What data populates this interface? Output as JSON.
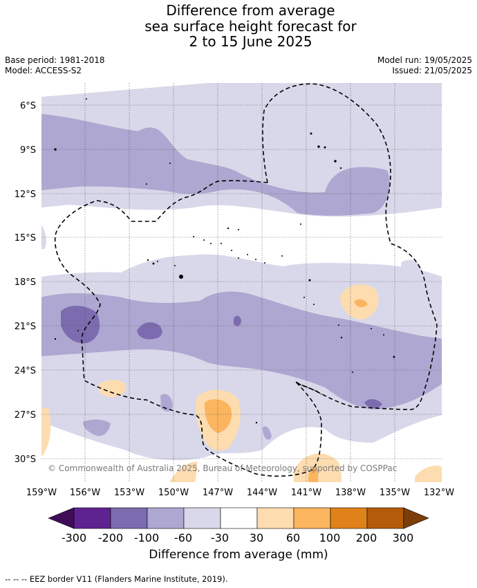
{
  "title": {
    "line1": "Difference from average",
    "line2": "sea surface height forecast for",
    "line3": "2 to 15 June 2025"
  },
  "meta": {
    "base_period": "Base period: 1981-2018",
    "model": "Model: ACCESS-S2",
    "model_run": "Model run: 19/05/2025",
    "issued": "Issued: 21/05/2025"
  },
  "map": {
    "lon_ticks": [
      "159°W",
      "156°W",
      "153°W",
      "150°W",
      "147°W",
      "144°W",
      "141°W",
      "138°W",
      "135°W",
      "132°W"
    ],
    "lat_ticks": [
      "6°S",
      "9°S",
      "12°S",
      "15°S",
      "18°S",
      "21°S",
      "24°S",
      "27°S",
      "30°S"
    ],
    "copyright": "© Commonwealth of Australia 2025, Bureau of Meteorology, supported by COSPPac",
    "gridlines": true
  },
  "colorbar": {
    "ticks": [
      "-300",
      "-200",
      "-100",
      "-60",
      "-30",
      "30",
      "60",
      "100",
      "200",
      "300"
    ],
    "colors": [
      "#3f0d57",
      "#5e2390",
      "#7c6caf",
      "#aea7d1",
      "#d8d8ea",
      "#ffffff",
      "#fddcb0",
      "#fbb55f",
      "#e0821a",
      "#b35b08",
      "#7d3d08"
    ],
    "label": "Difference from average (mm)"
  },
  "footnote": "--  --  -- EEZ border V11 (Flanders Marine Institute, 2019)."
}
